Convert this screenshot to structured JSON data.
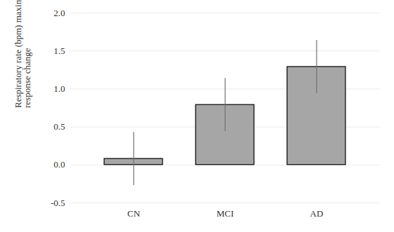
{
  "chart_data": {
    "type": "bar",
    "y_label": "Respiratory rate (bpm) maximum response change",
    "categories": [
      "CN",
      "MCI",
      "AD"
    ],
    "values": [
      0.08,
      0.79,
      1.29
    ],
    "errors": [
      0.35,
      0.35,
      0.35
    ],
    "color": "#a6a6a6",
    "ylim": [
      -0.5,
      2.0
    ],
    "yticks": [
      -0.5,
      {
        "value": 0,
        "label": "0.0"
      },
      0.5,
      {
        "value": 1,
        "label": "1.0"
      },
      1.5,
      {
        "value": 2,
        "label": "2.0"
      }
    ],
    "grid": true
  }
}
